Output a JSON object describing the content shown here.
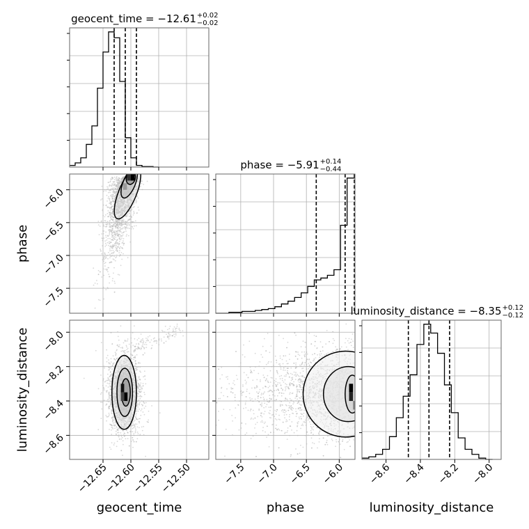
{
  "chart_data": {
    "type": "corner",
    "grid": true,
    "parameters": [
      "geocent_time",
      "phase",
      "luminosity_distance"
    ],
    "panels": [
      {
        "id": "hist-geocent_time",
        "type": "histogram",
        "param": "geocent_time",
        "title": {
          "name": "geocent_time",
          "median": "−12.61",
          "plus": "+0.02",
          "minus": "−0.02"
        },
        "xlim": [
          -12.71,
          -12.46
        ],
        "bin_edges": [
          -12.71,
          -12.7,
          -12.69,
          -12.68,
          -12.67,
          -12.66,
          -12.65,
          -12.64,
          -12.63,
          -12.62,
          -12.61,
          -12.6,
          -12.59,
          -12.58,
          -12.57,
          -12.56,
          -12.55
        ],
        "counts": [
          2,
          5,
          11,
          27,
          49,
          94,
          137,
          161,
          154,
          102,
          35,
          11,
          2,
          0.6,
          0.6,
          0
        ],
        "quantiles": [
          -12.63,
          -12.61,
          -12.59
        ]
      },
      {
        "id": "hist-phase",
        "type": "histogram",
        "param": "phase",
        "title": {
          "name": "phase",
          "median": "−5.91",
          "plus": "+0.14",
          "minus": "−0.44"
        },
        "xlim": [
          -7.88,
          -5.76
        ],
        "bin_edges": [
          -7.88,
          -7.78,
          -7.68,
          -7.58,
          -7.48,
          -7.38,
          -7.28,
          -7.18,
          -7.08,
          -6.98,
          -6.88,
          -6.78,
          -6.68,
          -6.58,
          -6.48,
          -6.38,
          -6.28,
          -6.18,
          -6.08,
          -5.98,
          -5.88,
          -5.76
        ],
        "counts": [
          0,
          0,
          1,
          1,
          2,
          2,
          3,
          4,
          5,
          7,
          10,
          13,
          17,
          22,
          29,
          36,
          38,
          41,
          47,
          95,
          146
        ],
        "quantiles": [
          -6.35,
          -5.91,
          -5.77
        ]
      },
      {
        "id": "hist-luminosity_distance",
        "type": "histogram",
        "param": "luminosity_distance",
        "title": {
          "name": "luminosity_distance",
          "median": "−8.35",
          "plus": "+0.12",
          "minus": "−0.12"
        },
        "xlim": [
          -8.74,
          -7.93
        ],
        "bin_edges": [
          -8.74,
          -8.7,
          -8.66,
          -8.62,
          -8.58,
          -8.54,
          -8.5,
          -8.46,
          -8.42,
          -8.38,
          -8.34,
          -8.3,
          -8.26,
          -8.22,
          -8.18,
          -8.14,
          -8.1,
          -8.06,
          -8.02,
          -7.98
        ],
        "counts": [
          1,
          2,
          4,
          8,
          18,
          33,
          50,
          67,
          91,
          107,
          100,
          84,
          59,
          37,
          17,
          8,
          4,
          1,
          0
        ],
        "quantiles": [
          -8.47,
          -8.35,
          -8.23
        ]
      },
      {
        "id": "2d-phase-vs-geocent_time",
        "type": "scatter-density",
        "x": "geocent_time",
        "y": "phase",
        "xlim": [
          -12.71,
          -12.46
        ],
        "ylim": [
          -7.88,
          -5.76
        ],
        "peak": [
          -12.6,
          -5.8
        ]
      },
      {
        "id": "2d-luminosity_distance-vs-geocent_time",
        "type": "scatter-density",
        "x": "geocent_time",
        "y": "luminosity_distance",
        "xlim": [
          -12.71,
          -12.46
        ],
        "ylim": [
          -8.74,
          -7.93
        ],
        "peak": [
          -12.61,
          -8.35
        ]
      },
      {
        "id": "2d-luminosity_distance-vs-phase",
        "type": "scatter-density",
        "x": "phase",
        "y": "luminosity_distance",
        "xlim": [
          -7.88,
          -5.76
        ],
        "ylim": [
          -8.74,
          -7.93
        ],
        "peak": [
          -5.82,
          -8.35
        ]
      }
    ],
    "axes": {
      "geocent_time": {
        "label": "geocent_time",
        "ticks": [
          -12.65,
          -12.6,
          -12.55,
          -12.5
        ],
        "tick_labels": [
          "−12.65",
          "−12.60",
          "−12.55",
          "−12.50"
        ]
      },
      "phase": {
        "label": "phase",
        "ticks": [
          -7.5,
          -7.0,
          -6.5,
          -6.0
        ],
        "tick_labels": [
          "−7.5",
          "−7.0",
          "−6.5",
          "−6.0"
        ]
      },
      "luminosity_distance": {
        "label": "luminosity_distance",
        "ticks": [
          -8.6,
          -8.4,
          -8.2,
          -8.0
        ],
        "tick_labels": [
          "−8.6",
          "−8.4",
          "−8.2",
          "−8.0"
        ]
      }
    },
    "colors": {
      "line": "#000000",
      "grid": "#b0b0b0",
      "scatter": "#b8b8b8"
    }
  }
}
